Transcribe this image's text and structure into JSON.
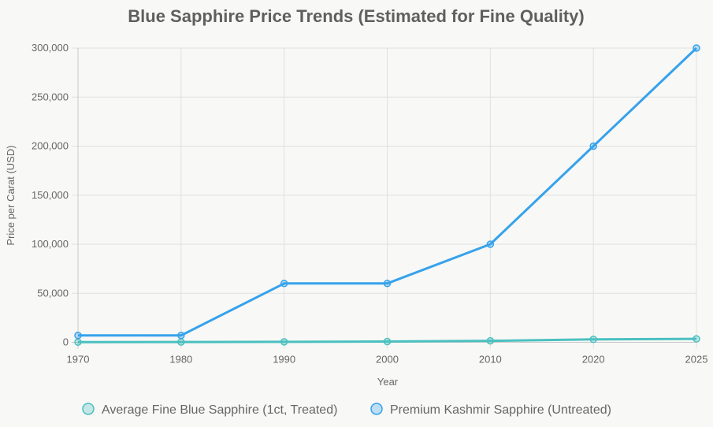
{
  "chart_data": {
    "type": "line",
    "title": "Blue Sapphire Price Trends (Estimated for Fine Quality)",
    "xlabel": "Year",
    "ylabel": "Price per Carat (USD)",
    "categories": [
      "1970",
      "1980",
      "1990",
      "2000",
      "2010",
      "2020",
      "2025"
    ],
    "ylim": [
      0,
      300000
    ],
    "yticks": [
      "0",
      "50,000",
      "100,000",
      "150,000",
      "200,000",
      "250,000",
      "300,000"
    ],
    "ytick_values": [
      0,
      50000,
      100000,
      150000,
      200000,
      250000,
      300000
    ],
    "grid": true,
    "legend_position": "bottom",
    "series": [
      {
        "name": "Average Fine Blue Sapphire (1ct, Treated)",
        "values": [
          200,
          300,
          500,
          800,
          1500,
          3000,
          3500
        ],
        "color": "#4BC0C0"
      },
      {
        "name": "Premium Kashmir Sapphire (Untreated)",
        "values": [
          7000,
          7000,
          60000,
          60000,
          100000,
          200000,
          300000
        ],
        "color": "#36A2EB"
      }
    ]
  }
}
